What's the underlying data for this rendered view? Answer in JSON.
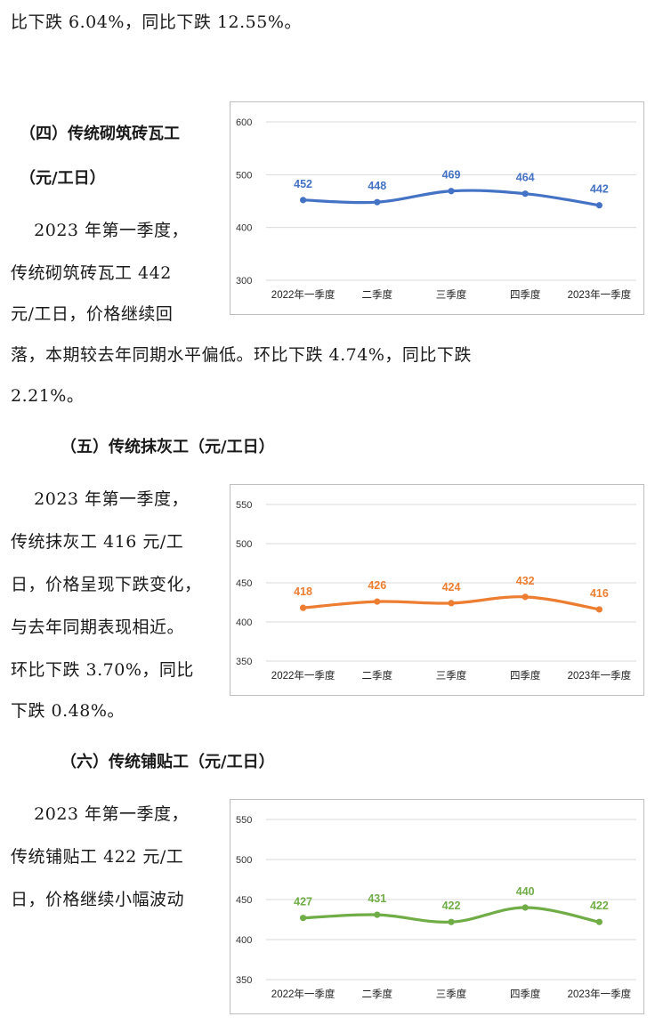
{
  "top_line": "比下跌 6.04%，同比下跌 12.55%。",
  "section4": {
    "heading_a": "（四）传统砌筑砖瓦工",
    "heading_b": "（元/工日）",
    "lines": [
      "    2023 年第一季度，",
      "传统砌筑砖瓦工 442",
      "元/工日，价格继续回"
    ],
    "full_lines": [
      "落，本期较去年同期水平偏低。环比下跌 4.74%，同比下跌",
      "2.21%。"
    ]
  },
  "section5": {
    "heading": "（五）传统抹灰工（元/工日）",
    "lines": [
      "    2023 年第一季度，",
      "传统抹灰工 416 元/工",
      "日，价格呈现下跌变化，",
      "与去年同期表现相近。",
      "环比下跌 3.70%，同比",
      "下跌 0.48%。"
    ]
  },
  "section6": {
    "heading": "（六）传统铺贴工（元/工日）",
    "lines": [
      "    2023 年第一季度，",
      "传统铺贴工 422 元/工",
      "日，价格继续小幅波动"
    ]
  },
  "chart_data": [
    {
      "type": "line",
      "categories": [
        "2022年一季度",
        "二季度",
        "三季度",
        "四季度",
        "2023年一季度"
      ],
      "values": [
        452,
        448,
        469,
        464,
        442
      ],
      "ylim": [
        300,
        600
      ],
      "yticks": [
        "300",
        "400",
        "500",
        "600"
      ],
      "color": "#4472c4",
      "grid": true
    },
    {
      "type": "line",
      "categories": [
        "2022年一季度",
        "二季度",
        "三季度",
        "四季度",
        "2023年一季度"
      ],
      "values": [
        418,
        426,
        424,
        432,
        416
      ],
      "ylim": [
        350,
        550
      ],
      "yticks": [
        "350",
        "400",
        "450",
        "500",
        "550"
      ],
      "color": "#ed7d31",
      "grid": true
    },
    {
      "type": "line",
      "categories": [
        "2022年一季度",
        "二季度",
        "三季度",
        "四季度",
        "2023年一季度"
      ],
      "values": [
        427,
        431,
        422,
        440,
        422
      ],
      "ylim": [
        350,
        550
      ],
      "yticks": [
        "350",
        "400",
        "450",
        "500",
        "550"
      ],
      "color": "#70ad47",
      "grid": true
    }
  ]
}
